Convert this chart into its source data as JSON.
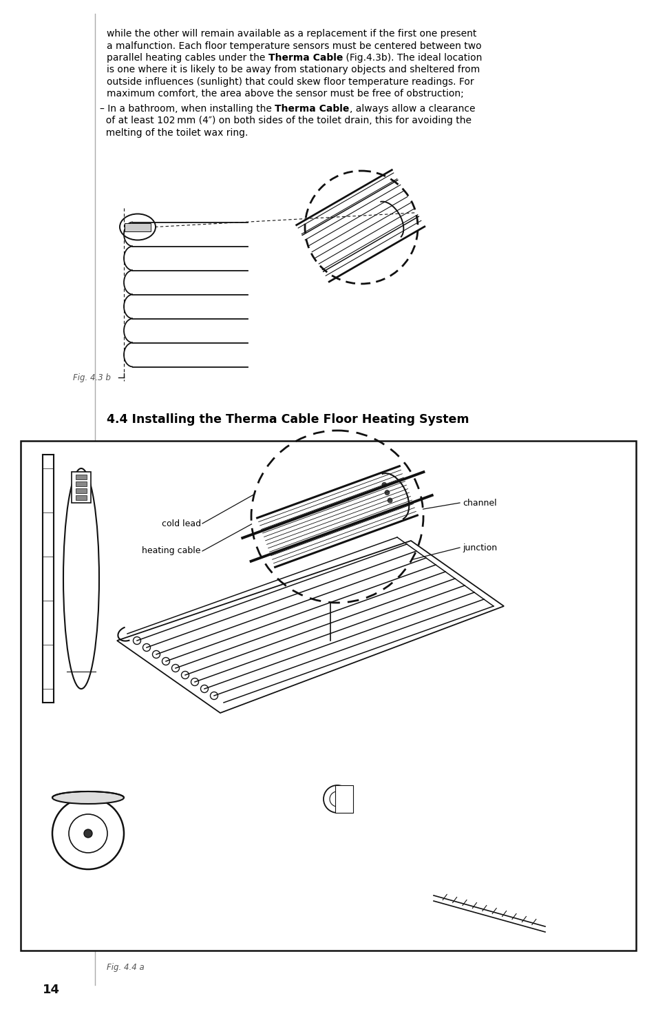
{
  "page_bg": "#ffffff",
  "body_fontsize": 10.0,
  "section_title": "4.4 Installing the Therma Cable Floor Heating System",
  "section_title_fontsize": 12.5,
  "fig43b_label": "Fig. 4.3 b",
  "fig44a_label": "Fig. 4.4 a",
  "labels": {
    "channel": "channel",
    "cold_lead": "cold lead",
    "heating_cable": "heating cable",
    "junction": "junction"
  },
  "page_number": "14"
}
